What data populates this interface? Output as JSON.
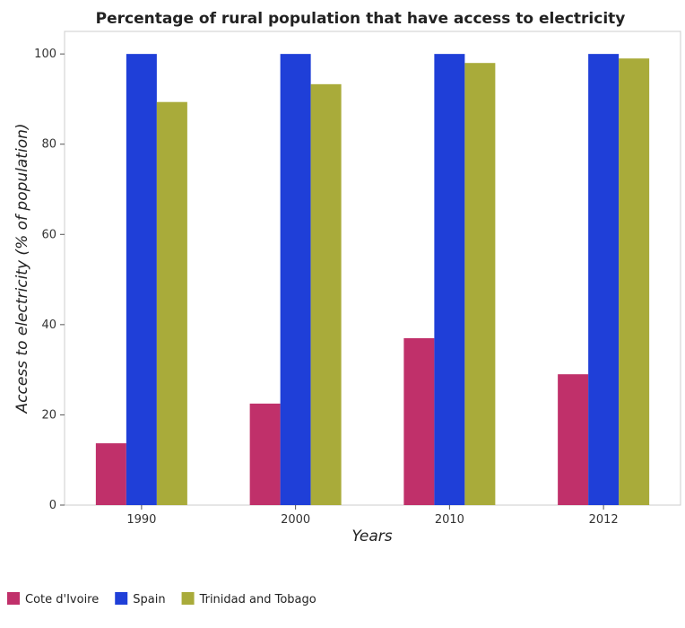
{
  "chart_data": {
    "type": "bar",
    "title": "Percentage of rural population that have access to electricity",
    "xlabel": "Years",
    "ylabel": "Access to electricity (% of population)",
    "categories": [
      "1990",
      "2000",
      "2010",
      "2012"
    ],
    "ylim": [
      0,
      105
    ],
    "yticks": [
      0,
      20,
      40,
      60,
      80,
      100
    ],
    "grid": false,
    "legend_position": "bottom-left",
    "series": [
      {
        "name": "Cote d'Ivoire",
        "color": "#c0306a",
        "values": [
          13.7,
          22.5,
          37.0,
          29.0
        ]
      },
      {
        "name": "Spain",
        "color": "#1f3fd8",
        "values": [
          100,
          100,
          100,
          100
        ]
      },
      {
        "name": "Trinidad and Tobago",
        "color": "#a9ab3a",
        "values": [
          89.35,
          93.3,
          98.0,
          99.0
        ]
      }
    ]
  }
}
